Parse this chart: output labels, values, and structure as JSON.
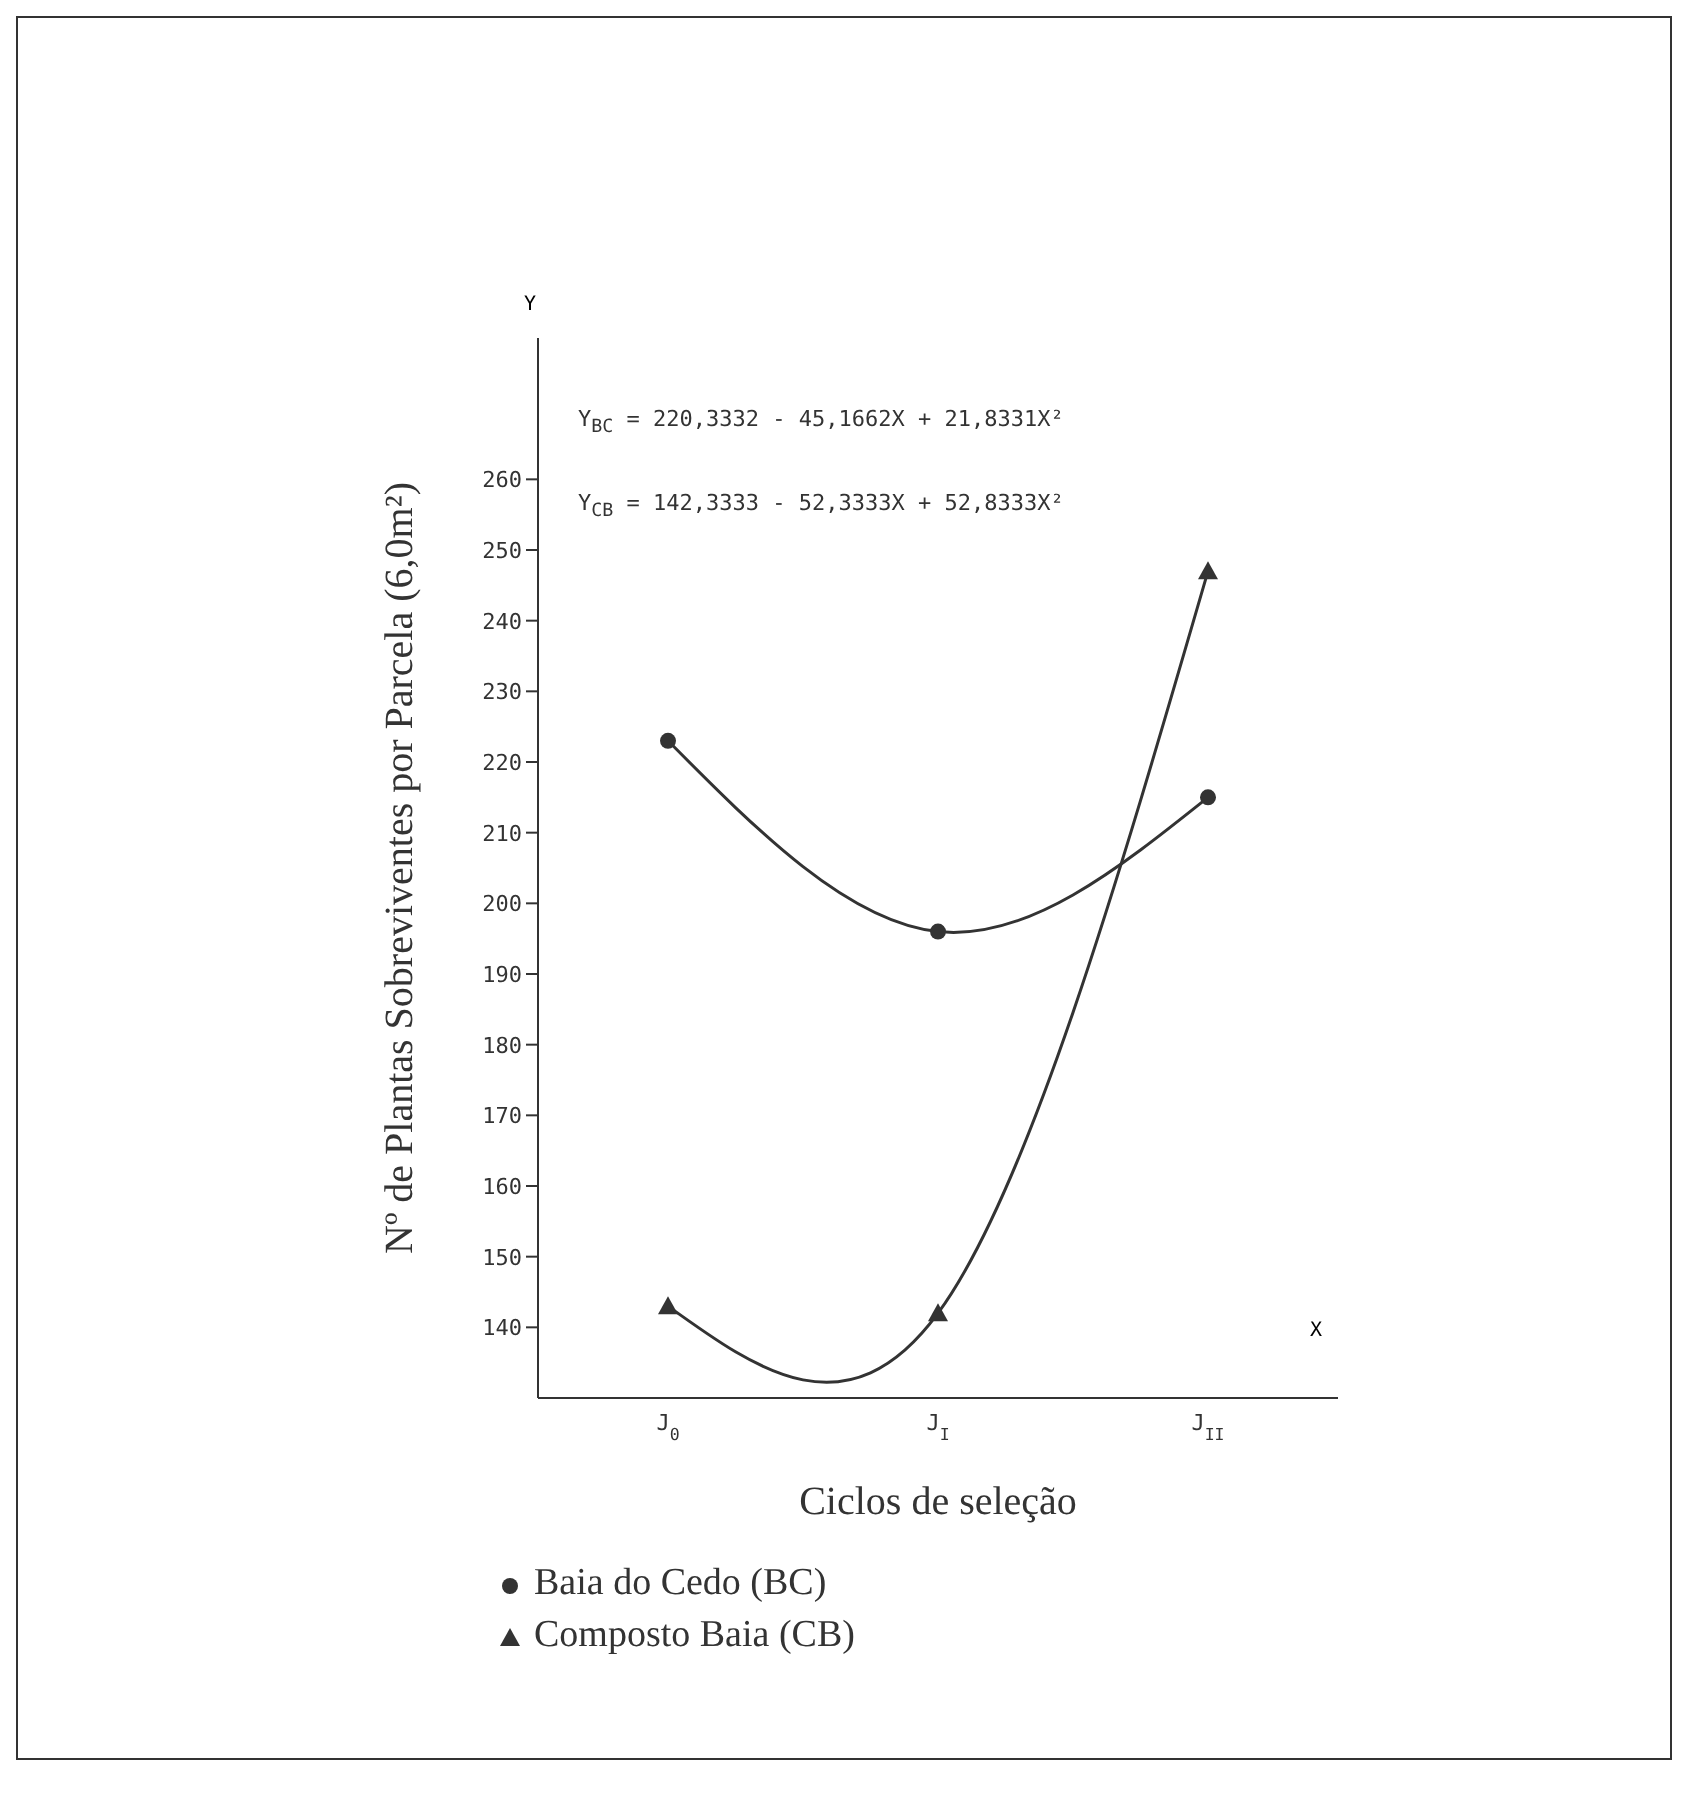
{
  "chart_data": {
    "type": "line",
    "xlabel": "Ciclos de seleção",
    "ylabel": "Nº de Plantas Sobreviventes por Parcela (6,0m²)",
    "categories": [
      "J$_{0}$",
      "J$_{I}$",
      "J$_{II}$"
    ],
    "ylim": [
      130,
      280
    ],
    "yticks": [
      140,
      150,
      160,
      170,
      180,
      190,
      200,
      210,
      220,
      230,
      240,
      250,
      260
    ],
    "grid": false,
    "legend": "bottom",
    "annotations": [
      "Y$_{BC}$ = 220,3332 - 45,1662X + 21,8331X²",
      "Y$_{CB}$ = 142,3333 - 52,3333X + 52,8333X²",
      "Y",
      "X"
    ],
    "series": [
      {
        "name": "Baia do Cedo (BC)",
        "marker": "circle",
        "color": "#333333",
        "values": [
          223,
          196,
          215
        ]
      },
      {
        "name": "Composto Baia (CB)",
        "marker": "triangle",
        "color": "#333333",
        "values": [
          143,
          142,
          247
        ]
      }
    ]
  }
}
